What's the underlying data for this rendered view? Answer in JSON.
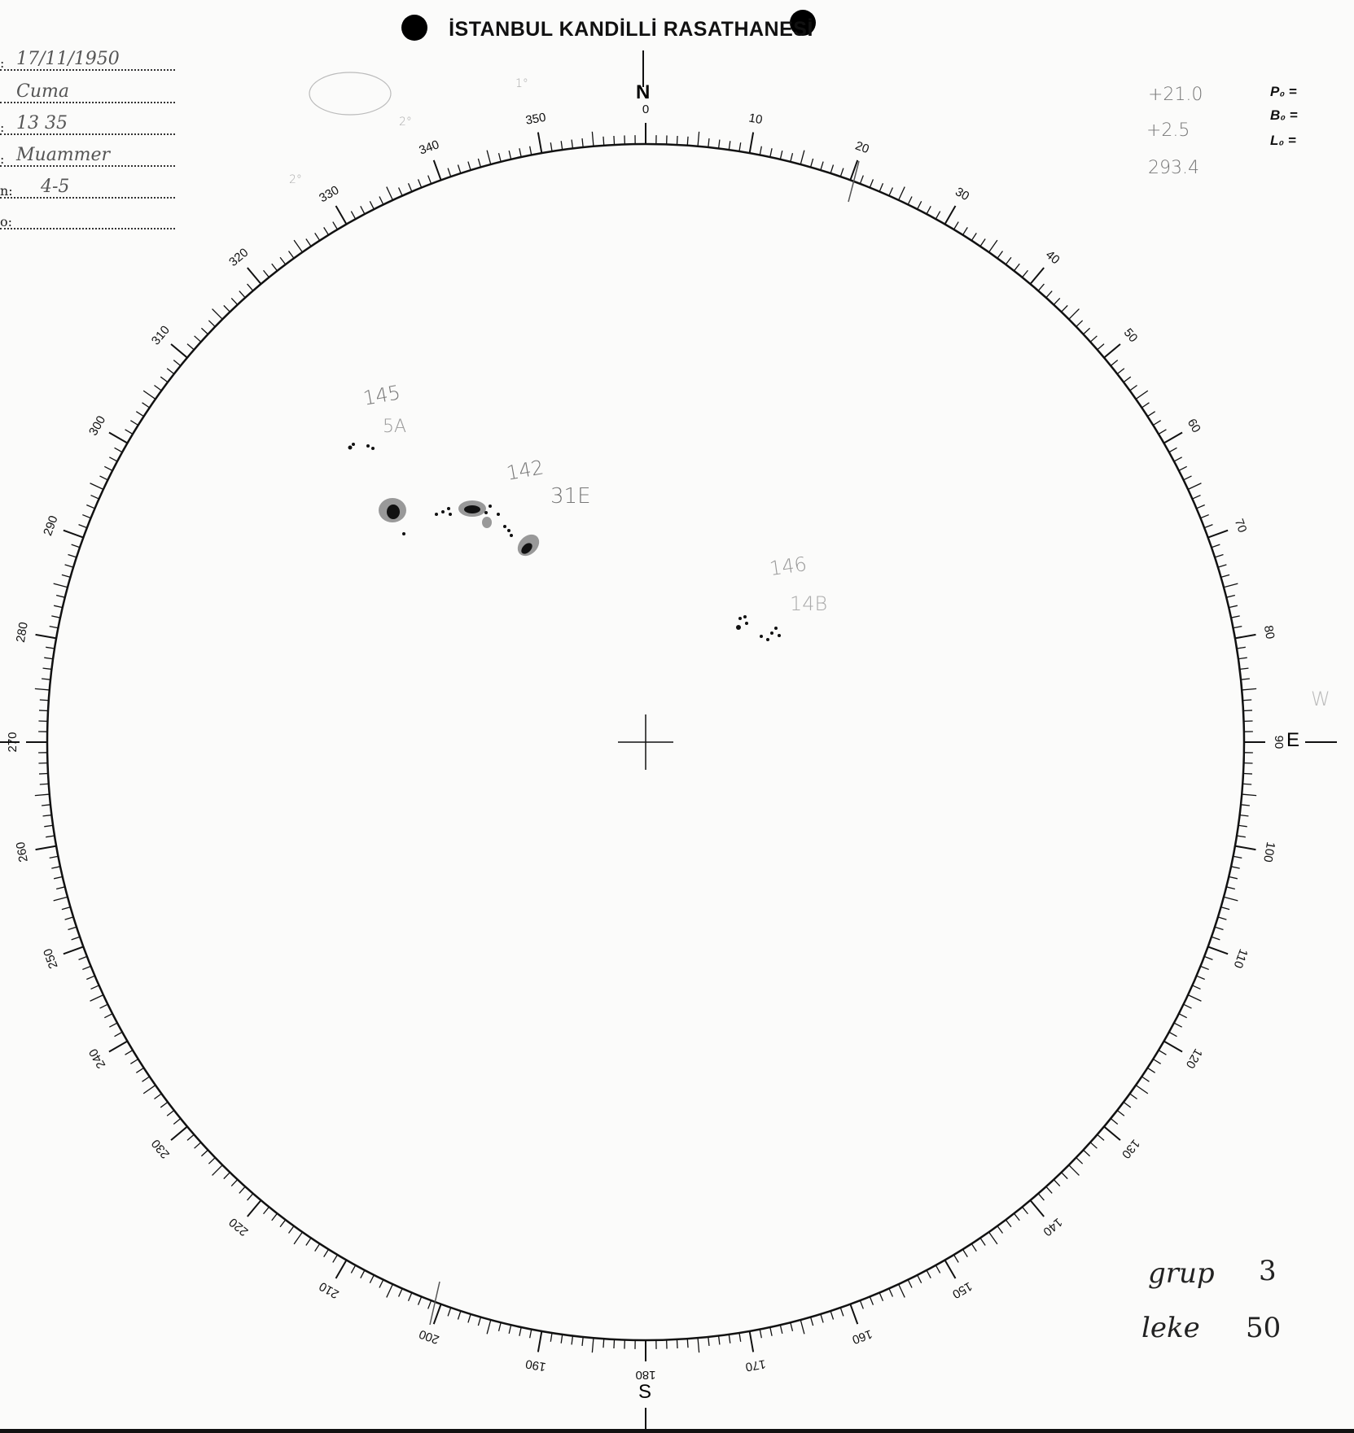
{
  "header": {
    "title": "İSTANBUL KANDİLLİ RASATHANESİ"
  },
  "form": {
    "rows": [
      {
        "key": ":",
        "value": "17/11/1950"
      },
      {
        "key": "",
        "value": "Cuma"
      },
      {
        "key": ":",
        "value": "13 35"
      },
      {
        "key": ":",
        "value": "Muammer"
      },
      {
        "key": "n:",
        "value": "4-5"
      },
      {
        "key": "o:",
        "value": ""
      }
    ]
  },
  "parameters": {
    "p0_label": "P₀ =",
    "p0_value": "+21.0",
    "b0_label": "B₀ =",
    "b0_value": "+2.5",
    "l0_label": "L₀ =",
    "l0_value": "293.4"
  },
  "compass": {
    "north": "N",
    "south": "S",
    "east": "E",
    "west_pencil": "W",
    "tick_labels": [
      "0",
      "10",
      "20",
      "30",
      "40",
      "50",
      "60",
      "70",
      "80",
      "90",
      "100",
      "110",
      "120",
      "130",
      "140",
      "150",
      "160",
      "170",
      "180",
      "190",
      "200",
      "210",
      "220",
      "230",
      "240",
      "250",
      "260",
      "270",
      "280",
      "290",
      "300",
      "310",
      "320",
      "330",
      "340",
      "350"
    ],
    "pencil_marks": [
      "1°",
      "2°",
      "2°"
    ]
  },
  "sunspot_groups": [
    {
      "number": "145",
      "class": "5A"
    },
    {
      "number": "142",
      "class": "31E"
    },
    {
      "number": "146",
      "class": "14B"
    }
  ],
  "summary": {
    "groups_label": "grup",
    "groups_value": "3",
    "spots_label": "leke",
    "spots_value": "50"
  },
  "colors": {
    "ink": "#111111",
    "pencil": "#888888",
    "paper": "#fbfbfa"
  }
}
